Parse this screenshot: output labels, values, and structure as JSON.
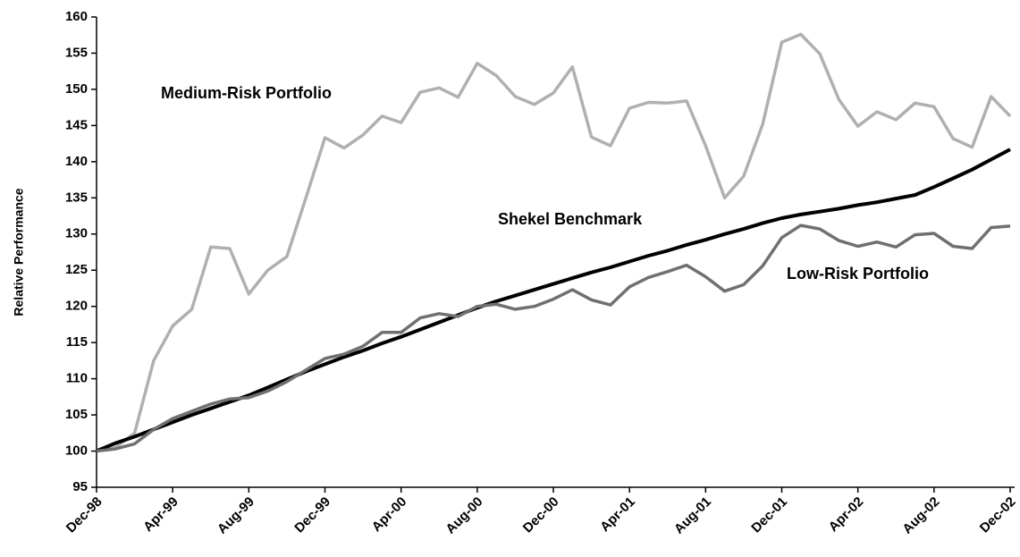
{
  "chart_data": {
    "type": "line",
    "y_label": "Relative Performance",
    "categories": [
      "Dec-98",
      null,
      null,
      null,
      "Apr-99",
      null,
      null,
      null,
      "Aug-99",
      null,
      null,
      null,
      "Dec-99",
      null,
      null,
      null,
      "Apr-00",
      null,
      null,
      null,
      "Aug-00",
      null,
      null,
      null,
      "Dec-00",
      null,
      null,
      null,
      "Apr-01",
      null,
      null,
      null,
      "Aug-01",
      null,
      null,
      null,
      "Dec-01",
      null,
      null,
      null,
      "Apr-02",
      null,
      null,
      null,
      "Aug-02",
      null,
      null,
      null,
      "Dec-02"
    ],
    "series": [
      {
        "name": "Medium-Risk Portfolio",
        "color": "#b0b0b0",
        "values": [
          100,
          100.5,
          102.5,
          112.5,
          117.3,
          119.6,
          128.2,
          128,
          121.7,
          125,
          126.9,
          135,
          143.3,
          141.9,
          143.7,
          146.3,
          145.4,
          149.6,
          150.2,
          148.9,
          153.6,
          151.9,
          149,
          147.9,
          149.5,
          153.1,
          143.4,
          142.2,
          147.4,
          148.2,
          148.1,
          148.4,
          142.2,
          135,
          138,
          145.2,
          156.5,
          157.6,
          154.9,
          148.6,
          144.9,
          146.9,
          145.8,
          148.1,
          147.6,
          143.2,
          142,
          149,
          146.3
        ]
      },
      {
        "name": "Shekel Benchmark",
        "color": "#000000",
        "values": [
          100,
          101.1,
          102,
          103,
          104,
          105,
          105.9,
          106.8,
          107.7,
          108.8,
          109.9,
          111,
          112,
          113,
          113.9,
          114.9,
          115.8,
          116.8,
          117.8,
          118.8,
          119.8,
          120.7,
          121.5,
          122.3,
          123.1,
          123.9,
          124.7,
          125.4,
          126.2,
          127,
          127.7,
          128.5,
          129.2,
          130,
          130.7,
          131.5,
          132.2,
          132.7,
          133.1,
          133.5,
          134,
          134.4,
          134.9,
          135.4,
          136.5,
          137.7,
          138.9,
          140.3,
          141.7
        ]
      },
      {
        "name": "Low-Risk Portfolio",
        "color": "#707070",
        "values": [
          100,
          100.3,
          101,
          103,
          104.5,
          105.5,
          106.5,
          107.2,
          107.4,
          108.3,
          109.6,
          111.2,
          112.8,
          113.4,
          114.5,
          116.4,
          116.4,
          118.4,
          119,
          118.6,
          120,
          120.3,
          119.6,
          120,
          121,
          122.3,
          120.9,
          120.2,
          122.7,
          124,
          124.8,
          125.7,
          124.1,
          122.1,
          123,
          125.6,
          129.5,
          131.2,
          130.7,
          129.1,
          128.3,
          128.9,
          128.2,
          129.9,
          130.1,
          128.3,
          128,
          130.9,
          131.1
        ]
      }
    ],
    "ylim": [
      95,
      160
    ],
    "yticks": [
      95,
      100,
      105,
      110,
      115,
      120,
      125,
      130,
      135,
      140,
      145,
      150,
      155,
      160
    ]
  }
}
